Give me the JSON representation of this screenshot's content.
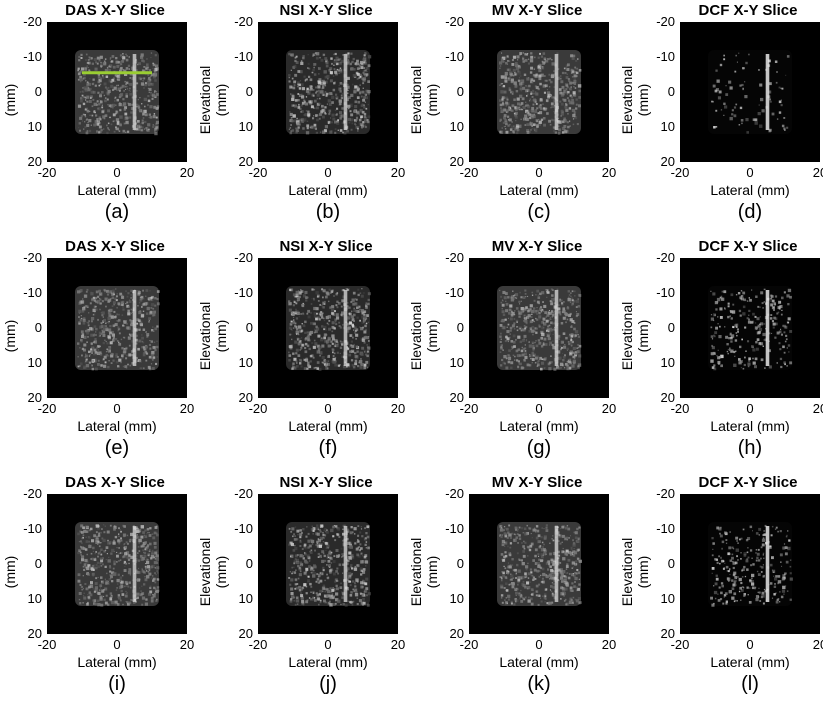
{
  "figure": {
    "y_axis_label": "Elevational (mm)",
    "x_axis_label": "Lateral (mm)",
    "y_ticks": [
      "-20",
      "-10",
      "0",
      "10",
      "20"
    ],
    "x_ticks": [
      "-20",
      "0",
      "20"
    ],
    "overlay_line_color": "#9acd32",
    "panels": [
      {
        "title": "DAS X-Y Slice",
        "label": "(a)",
        "method": "DAS",
        "has_line_marker": true
      },
      {
        "title": "NSI X-Y Slice",
        "label": "(b)",
        "method": "NSI"
      },
      {
        "title": "MV X-Y Slice",
        "label": "(c)",
        "method": "MV"
      },
      {
        "title": "DCF X-Y Slice",
        "label": "(d)",
        "method": "DCF"
      },
      {
        "title": "DAS X-Y Slice",
        "label": "(e)",
        "method": "DAS"
      },
      {
        "title": "NSI X-Y Slice",
        "label": "(f)",
        "method": "NSI"
      },
      {
        "title": "MV X-Y Slice",
        "label": "(g)",
        "method": "MV"
      },
      {
        "title": "DCF X-Y Slice",
        "label": "(h)",
        "method": "DCF"
      },
      {
        "title": "DAS X-Y Slice",
        "label": "(i)",
        "method": "DAS"
      },
      {
        "title": "NSI X-Y Slice",
        "label": "(j)",
        "method": "NSI"
      },
      {
        "title": "MV X-Y Slice",
        "label": "(k)",
        "method": "MV"
      },
      {
        "title": "DCF X-Y Slice",
        "label": "(l)",
        "method": "DCF"
      }
    ]
  }
}
